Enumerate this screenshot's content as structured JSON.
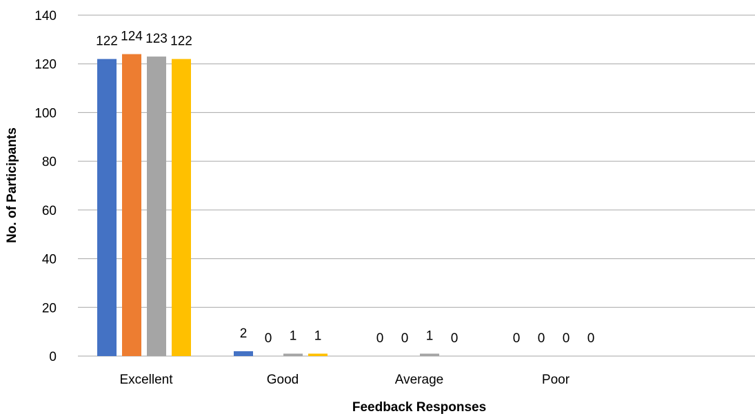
{
  "chart_data": {
    "type": "bar",
    "title": "",
    "xlabel": "Feedback Responses",
    "ylabel": "No. of Participants",
    "categories": [
      "Excellent",
      "Good",
      "Average",
      "Poor",
      ""
    ],
    "ylim": [
      0,
      140
    ],
    "yticks": [
      0,
      20,
      40,
      60,
      80,
      100,
      120,
      140
    ],
    "grid": true,
    "legend": "none",
    "series": [
      {
        "values": [
          122,
          2,
          0,
          0,
          null
        ],
        "color": "#4472C4"
      },
      {
        "values": [
          124,
          0,
          0,
          0,
          null
        ],
        "color": "#ED7D31"
      },
      {
        "values": [
          123,
          1,
          1,
          0,
          null
        ],
        "color": "#A5A5A5"
      },
      {
        "values": [
          122,
          1,
          0,
          0,
          null
        ],
        "color": "#FFC000"
      }
    ],
    "gridline_color": "#A6A6A6"
  }
}
